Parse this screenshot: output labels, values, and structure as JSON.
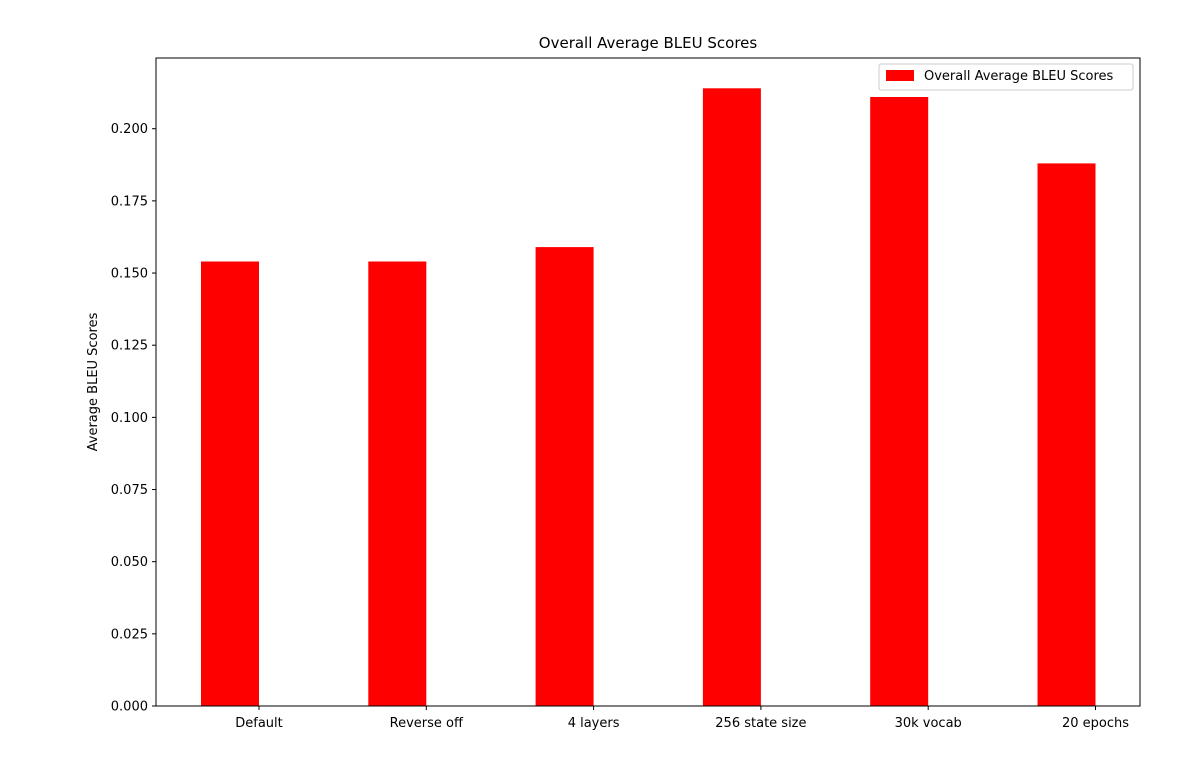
{
  "chart_data": {
    "type": "bar",
    "title": "Overall Average BLEU Scores",
    "xlabel": "",
    "ylabel": "Average BLEU Scores",
    "categories": [
      "Default",
      "Reverse off",
      "4 layers",
      "256 state size",
      "30k vocab",
      "20 epochs"
    ],
    "series": [
      {
        "name": "Overall Average BLEU Scores",
        "values": [
          0.154,
          0.154,
          0.159,
          0.214,
          0.211,
          0.188
        ],
        "color": "#ff0000"
      }
    ],
    "ylim": [
      0,
      0.2245
    ],
    "yticks": [
      0.0,
      0.025,
      0.05,
      0.075,
      0.1,
      0.125,
      0.15,
      0.175,
      0.2
    ],
    "ytick_labels": [
      "0.000",
      "0.025",
      "0.050",
      "0.075",
      "0.100",
      "0.125",
      "0.150",
      "0.175",
      "0.200"
    ],
    "grid": false,
    "legend_position": "top-right"
  }
}
